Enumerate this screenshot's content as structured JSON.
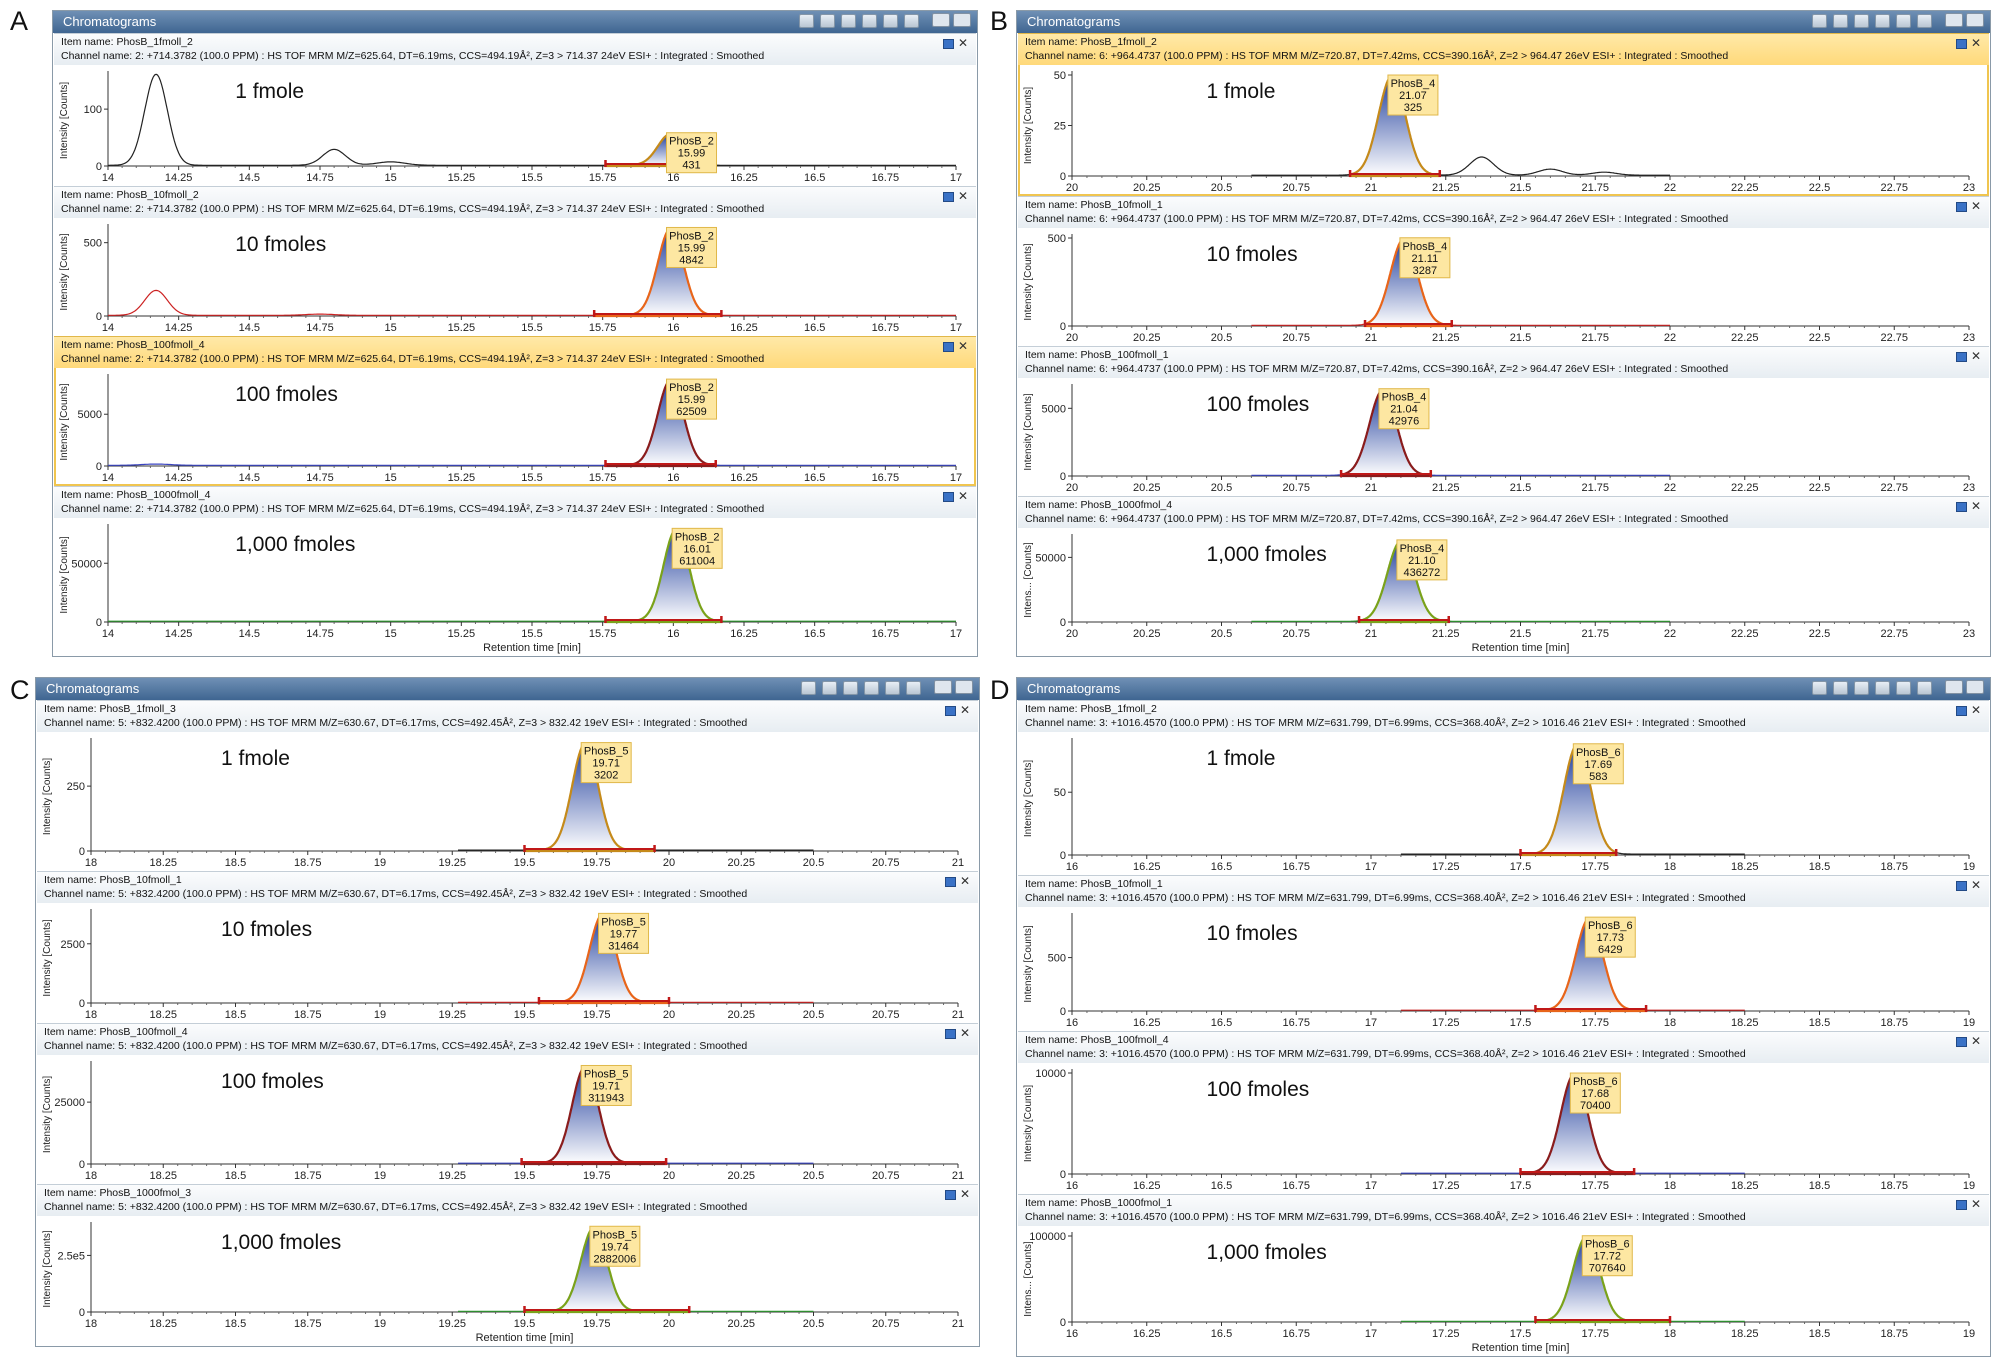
{
  "window_title": "Chromatograms",
  "y_axis_label": "Intensity [Counts]",
  "y_axis_label_short": "Intens... [Counts]",
  "x_axis_label": "Retention time [min]",
  "colors": {
    "titlebar": "#4a6f99",
    "peak_fill_top": "#1f3d9c",
    "peak_fill_bottom": "#ffffff",
    "baseline_marker": "#c01818",
    "annotation_bg": "#fde7a2",
    "annotation_border": "#e0b84a",
    "trace_1fmol": "#222222",
    "trace_10fmol": "#cc2222",
    "trace_100fmol": "#3a44c0",
    "trace_1000fmol": "#2f9a30",
    "outline_1fmol": "#c58a1a",
    "outline_10fmol": "#e8651a",
    "outline_100fmol": "#8a1c1c",
    "outline_1000fmol": "#7aa21a"
  },
  "chart_data": [
    {
      "letter": "A",
      "type": "line",
      "x_range": [
        14,
        17
      ],
      "x_ticks": [
        "14",
        "14.25",
        "14.5",
        "14.75",
        "15",
        "15.25",
        "15.5",
        "15.75",
        "16",
        "16.25",
        "16.5",
        "16.75",
        "17"
      ],
      "x_tick_values": [
        14,
        14.25,
        14.5,
        14.75,
        15,
        15.25,
        15.5,
        15.75,
        16,
        16.25,
        16.5,
        16.75,
        17
      ],
      "traces": [
        {
          "item_name": "Item name: PhosB_1fmoll_2",
          "channel": "Channel name: 2: +714.3782 (100.0 PPM) : HS TOF MRM M/Z=625.64, DT=6.19ms, CCS=494.19Å², Z=3 > 714.37 24eV ESI+ : Integrated : Smoothed",
          "amount": "1 fmole",
          "highlight": false,
          "ylim": [
            0,
            160
          ],
          "y_ticks": [
            "0",
            "100"
          ],
          "y_tick_values": [
            0,
            100
          ],
          "peak": {
            "name": "PhosB_2",
            "rt": "15.99",
            "area": "431",
            "rt_value": 15.99,
            "height": 55,
            "sigma": 0.045,
            "start": 15.76,
            "end": 16.15
          },
          "extra_peaks": [
            {
              "rt": 14.17,
              "height": 160,
              "sigma": 0.04
            },
            {
              "rt": 14.8,
              "height": 28,
              "sigma": 0.04
            },
            {
              "rt": 15.0,
              "height": 6,
              "sigma": 0.05
            }
          ],
          "trace_range": [
            14,
            17
          ]
        },
        {
          "item_name": "Item name: PhosB_10fmoll_2",
          "channel": "Channel name: 2: +714.3782 (100.0 PPM) : HS TOF MRM M/Z=625.64, DT=6.19ms, CCS=494.19Å², Z=3 > 714.37 24eV ESI+ : Integrated : Smoothed",
          "amount": "10 fmoles",
          "highlight": false,
          "ylim": [
            0,
            600
          ],
          "y_ticks": [
            "0",
            "500"
          ],
          "y_tick_values": [
            0,
            500
          ],
          "peak": {
            "name": "PhosB_2",
            "rt": "15.99",
            "area": "4842",
            "rt_value": 15.99,
            "height": 590,
            "sigma": 0.045,
            "start": 15.72,
            "end": 16.17
          },
          "extra_peaks": [
            {
              "rt": 14.17,
              "height": 170,
              "sigma": 0.04
            },
            {
              "rt": 14.75,
              "height": 8,
              "sigma": 0.05
            }
          ],
          "trace_range": [
            14,
            17
          ]
        },
        {
          "item_name": "Item name: PhosB_100fmoll_4",
          "channel": "Channel name: 2: +714.3782 (100.0 PPM) : HS TOF MRM M/Z=625.64, DT=6.19ms, CCS=494.19Å², Z=3 > 714.37 24eV ESI+ : Integrated : Smoothed",
          "amount": "100 fmoles",
          "highlight": true,
          "ylim": [
            0,
            8500
          ],
          "y_ticks": [
            "0",
            "5000"
          ],
          "y_tick_values": [
            0,
            5000
          ],
          "peak": {
            "name": "PhosB_2",
            "rt": "15.99",
            "area": "62509",
            "rt_value": 15.99,
            "height": 8200,
            "sigma": 0.045,
            "start": 15.76,
            "end": 16.15
          },
          "extra_peaks": [
            {
              "rt": 14.17,
              "height": 120,
              "sigma": 0.05
            }
          ],
          "trace_range": [
            14,
            17
          ]
        },
        {
          "item_name": "Item name: PhosB_1000fmoll_4",
          "channel": "Channel name: 2: +714.3782 (100.0 PPM) : HS TOF MRM M/Z=625.64, DT=6.19ms, CCS=494.19Å², Z=3 > 714.37 24eV ESI+ : Integrated : Smoothed",
          "amount": "1,000 fmoles",
          "highlight": false,
          "ylim": [
            0,
            80000
          ],
          "y_ticks": [
            "0",
            "50000"
          ],
          "y_tick_values": [
            0,
            50000
          ],
          "peak": {
            "name": "PhosB_2",
            "rt": "16.01",
            "area": "611004",
            "rt_value": 16.01,
            "height": 78000,
            "sigma": 0.045,
            "start": 15.76,
            "end": 16.17
          },
          "extra_peaks": [],
          "trace_range": [
            14,
            17
          ]
        }
      ]
    },
    {
      "letter": "B",
      "type": "line",
      "x_range": [
        20,
        23
      ],
      "x_ticks": [
        "20",
        "20.25",
        "20.5",
        "20.75",
        "21",
        "21.25",
        "21.5",
        "21.75",
        "22",
        "22.25",
        "22.5",
        "22.75",
        "23"
      ],
      "x_tick_values": [
        20,
        20.25,
        20.5,
        20.75,
        21,
        21.25,
        21.5,
        21.75,
        22,
        22.25,
        22.5,
        22.75,
        23
      ],
      "traces": [
        {
          "item_name": "Item name: PhosB_1fmoll_2",
          "channel": "Channel name: 6: +964.4737 (100.0 PPM) : HS TOF MRM M/Z=720.87, DT=7.42ms, CCS=390.16Å², Z=2 > 964.47 26eV ESI+ : Integrated : Smoothed",
          "amount": "1 fmole",
          "highlight": true,
          "ylim": [
            0,
            50
          ],
          "y_ticks": [
            "0",
            "25",
            "50"
          ],
          "y_tick_values": [
            0,
            25,
            50
          ],
          "peak": {
            "name": "PhosB_4",
            "rt": "21.07",
            "area": "325",
            "rt_value": 21.07,
            "height": 49,
            "sigma": 0.045,
            "start": 20.93,
            "end": 21.23
          },
          "extra_peaks": [
            {
              "rt": 21.37,
              "height": 9,
              "sigma": 0.04
            },
            {
              "rt": 21.6,
              "height": 3,
              "sigma": 0.04
            },
            {
              "rt": 21.78,
              "height": 1.5,
              "sigma": 0.04
            }
          ],
          "trace_range": [
            20.6,
            22
          ]
        },
        {
          "item_name": "Item name: PhosB_10fmoll_1",
          "channel": "Channel name: 6: +964.4737 (100.0 PPM) : HS TOF MRM M/Z=720.87, DT=7.42ms, CCS=390.16Å², Z=2 > 964.47 26eV ESI+ : Integrated : Smoothed",
          "amount": "10 fmoles",
          "highlight": false,
          "ylim": [
            0,
            500
          ],
          "y_ticks": [
            "0",
            "500"
          ],
          "y_tick_values": [
            0,
            500
          ],
          "peak": {
            "name": "PhosB_4",
            "rt": "21.11",
            "area": "3287",
            "rt_value": 21.11,
            "height": 490,
            "sigma": 0.045,
            "start": 20.98,
            "end": 21.27
          },
          "extra_peaks": [],
          "trace_range": [
            20.6,
            22
          ]
        },
        {
          "item_name": "Item name: PhosB_100fmoll_1",
          "channel": "Channel name: 6: +964.4737 (100.0 PPM) : HS TOF MRM M/Z=720.87, DT=7.42ms, CCS=390.16Å², Z=2 > 964.47 26eV ESI+ : Integrated : Smoothed",
          "amount": "100 fmoles",
          "highlight": false,
          "ylim": [
            0,
            6500
          ],
          "y_ticks": [
            "0",
            "5000"
          ],
          "y_tick_values": [
            0,
            5000
          ],
          "peak": {
            "name": "PhosB_4",
            "rt": "21.04",
            "area": "42976",
            "rt_value": 21.04,
            "height": 6300,
            "sigma": 0.045,
            "start": 20.9,
            "end": 21.2
          },
          "extra_peaks": [],
          "trace_range": [
            20.6,
            22
          ]
        },
        {
          "item_name": "Item name: PhosB_1000fmol_4",
          "channel": "Channel name: 6: +964.4737 (100.0 PPM) : HS TOF MRM M/Z=720.87, DT=7.42ms, CCS=390.16Å², Z=2 > 964.47 26eV ESI+ : Integrated : Smoothed",
          "amount": "1,000 fmoles",
          "highlight": false,
          "ylim": [
            0,
            65000
          ],
          "y_ticks": [
            "0",
            "50000"
          ],
          "y_tick_values": [
            0,
            50000
          ],
          "peak": {
            "name": "PhosB_4",
            "rt": "21.10",
            "area": "436272",
            "rt_value": 21.1,
            "height": 62000,
            "sigma": 0.045,
            "start": 20.96,
            "end": 21.26
          },
          "extra_peaks": [],
          "trace_range": [
            20.6,
            22
          ]
        }
      ]
    },
    {
      "letter": "C",
      "type": "line",
      "x_range": [
        18,
        21
      ],
      "x_ticks": [
        "18",
        "18.25",
        "18.5",
        "18.75",
        "19",
        "19.25",
        "19.5",
        "19.75",
        "20",
        "20.25",
        "20.5",
        "20.75",
        "21"
      ],
      "x_tick_values": [
        18,
        18.25,
        18.5,
        18.75,
        19,
        19.25,
        19.5,
        19.75,
        20,
        20.25,
        20.5,
        20.75,
        21
      ],
      "traces": [
        {
          "item_name": "Item name: PhosB_1fmoll_3",
          "channel": "Channel name: 5: +832.4200 (100.0 PPM) : HS TOF MRM M/Z=630.67, DT=6.17ms, CCS=492.45Å², Z=3 > 832.42 19eV ESI+ : Integrated : Smoothed",
          "amount": "1 fmole",
          "highlight": false,
          "ylim": [
            0,
            420
          ],
          "y_ticks": [
            "0",
            "250"
          ],
          "y_tick_values": [
            0,
            250
          ],
          "peak": {
            "name": "PhosB_5",
            "rt": "19.71",
            "area": "3202",
            "rt_value": 19.71,
            "height": 410,
            "sigma": 0.045,
            "start": 19.5,
            "end": 19.95
          },
          "extra_peaks": [],
          "trace_range": [
            19.27,
            20.5
          ]
        },
        {
          "item_name": "Item name: PhosB_10fmoll_1",
          "channel": "Channel name: 5: +832.4200 (100.0 PPM) : HS TOF MRM M/Z=630.67, DT=6.17ms, CCS=492.45Å², Z=3 > 832.42 19eV ESI+ : Integrated : Smoothed",
          "amount": "10 fmoles",
          "highlight": false,
          "ylim": [
            0,
            3800
          ],
          "y_ticks": [
            "0",
            "2500"
          ],
          "y_tick_values": [
            0,
            2500
          ],
          "peak": {
            "name": "PhosB_5",
            "rt": "19.77",
            "area": "31464",
            "rt_value": 19.77,
            "height": 3700,
            "sigma": 0.045,
            "start": 19.55,
            "end": 20.0
          },
          "extra_peaks": [],
          "trace_range": [
            19.27,
            20.5
          ]
        },
        {
          "item_name": "Item name: PhosB_100fmoll_4",
          "channel": "Channel name: 5: +832.4200 (100.0 PPM) : HS TOF MRM M/Z=630.67, DT=6.17ms, CCS=492.45Å², Z=3 > 832.42 19eV ESI+ : Integrated : Smoothed",
          "amount": "100 fmoles",
          "highlight": false,
          "ylim": [
            0,
            40000
          ],
          "y_ticks": [
            "0",
            "25000"
          ],
          "y_tick_values": [
            0,
            25000
          ],
          "peak": {
            "name": "PhosB_5",
            "rt": "19.71",
            "area": "311943",
            "rt_value": 19.71,
            "height": 39000,
            "sigma": 0.045,
            "start": 19.49,
            "end": 19.99
          },
          "extra_peaks": [],
          "trace_range": [
            19.27,
            20.5
          ]
        },
        {
          "item_name": "Item name: PhosB_1000fmol_3",
          "channel": "Channel name: 5: +832.4200 (100.0 PPM) : HS TOF MRM M/Z=630.67, DT=6.17ms, CCS=492.45Å², Z=3 > 832.42 19eV ESI+ : Integrated : Smoothed",
          "amount": "1,000 fmoles",
          "highlight": false,
          "ylim": [
            0,
            380000
          ],
          "y_ticks": [
            "0",
            "2.5e5"
          ],
          "y_tick_values": [
            0,
            250000
          ],
          "peak": {
            "name": "PhosB_5",
            "rt": "19.74",
            "area": "2882006",
            "rt_value": 19.74,
            "height": 370000,
            "sigma": 0.045,
            "start": 19.5,
            "end": 20.07
          },
          "extra_peaks": [],
          "trace_range": [
            19.27,
            20.5
          ]
        }
      ]
    },
    {
      "letter": "D",
      "type": "line",
      "x_range": [
        16,
        19
      ],
      "x_ticks": [
        "16",
        "16.25",
        "16.5",
        "16.75",
        "17",
        "17.25",
        "17.5",
        "17.75",
        "18",
        "18.25",
        "18.5",
        "18.75",
        "19"
      ],
      "x_tick_values": [
        16,
        16.25,
        16.5,
        16.75,
        17,
        17.25,
        17.5,
        17.75,
        18,
        18.25,
        18.5,
        18.75,
        19
      ],
      "traces": [
        {
          "item_name": "Item name: PhosB_1fmoll_2",
          "channel": "Channel name: 3: +1016.4570 (100.0 PPM) : HS TOF MRM M/Z=631.799, DT=6.99ms, CCS=368.40Å², Z=2 > 1016.46 21eV ESI+ : Integrated : Smoothed",
          "amount": "1 fmole",
          "highlight": false,
          "ylim": [
            0,
            90
          ],
          "y_ticks": [
            "0",
            "50"
          ],
          "y_tick_values": [
            0,
            50
          ],
          "peak": {
            "name": "PhosB_6",
            "rt": "17.69",
            "area": "583",
            "rt_value": 17.69,
            "height": 87,
            "sigma": 0.045,
            "start": 17.5,
            "end": 17.82
          },
          "extra_peaks": [],
          "trace_range": [
            17.1,
            18.25
          ]
        },
        {
          "item_name": "Item name: PhosB_10fmoll_1",
          "channel": "Channel name: 3: +1016.4570 (100.0 PPM) : HS TOF MRM M/Z=631.799, DT=6.99ms, CCS=368.40Å², Z=2 > 1016.46 21eV ESI+ : Integrated : Smoothed",
          "amount": "10 fmoles",
          "highlight": false,
          "ylim": [
            0,
            880
          ],
          "y_ticks": [
            "0",
            "500"
          ],
          "y_tick_values": [
            0,
            500
          ],
          "peak": {
            "name": "PhosB_6",
            "rt": "17.73",
            "area": "6429",
            "rt_value": 17.73,
            "height": 860,
            "sigma": 0.045,
            "start": 17.55,
            "end": 17.92
          },
          "extra_peaks": [],
          "trace_range": [
            17.1,
            18.25
          ]
        },
        {
          "item_name": "Item name: PhosB_100fmoll_4",
          "channel": "Channel name: 3: +1016.4570 (100.0 PPM) : HS TOF MRM M/Z=631.799, DT=6.99ms, CCS=368.40Å², Z=2 > 1016.46 21eV ESI+ : Integrated : Smoothed",
          "amount": "100 fmoles",
          "highlight": false,
          "ylim": [
            0,
            10000
          ],
          "y_ticks": [
            "0",
            "10000"
          ],
          "y_tick_values": [
            0,
            10000
          ],
          "peak": {
            "name": "PhosB_6",
            "rt": "17.68",
            "area": "70400",
            "rt_value": 17.68,
            "height": 9800,
            "sigma": 0.045,
            "start": 17.5,
            "end": 17.88
          },
          "extra_peaks": [],
          "trace_range": [
            17.1,
            18.25
          ]
        },
        {
          "item_name": "Item name: PhosB_1000fmol_1",
          "channel": "Channel name: 3: +1016.4570 (100.0 PPM) : HS TOF MRM M/Z=631.799, DT=6.99ms, CCS=368.40Å², Z=2 > 1016.46 21eV ESI+ : Integrated : Smoothed",
          "amount": "1,000 fmoles",
          "highlight": false,
          "ylim": [
            0,
            100000
          ],
          "y_ticks": [
            "0",
            "100000"
          ],
          "y_tick_values": [
            0,
            100000
          ],
          "peak": {
            "name": "PhosB_6",
            "rt": "17.72",
            "area": "707640",
            "rt_value": 17.72,
            "height": 98000,
            "sigma": 0.045,
            "start": 17.55,
            "end": 18.0
          },
          "extra_peaks": [],
          "trace_range": [
            17.1,
            18.25
          ]
        }
      ]
    }
  ]
}
